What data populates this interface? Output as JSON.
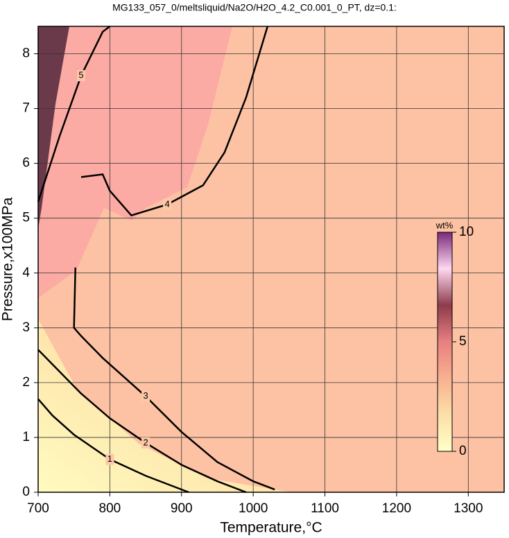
{
  "chart_data": {
    "type": "contour",
    "title": "MG133_057_0/meltsliquid/Na2O/H2O_4.2_C0.001_0_PT, dz=0.1:",
    "xlabel": "Temperature,°C",
    "ylabel": "Pressure,x100MPa",
    "xlim": [
      700,
      1350
    ],
    "xticks": [
      700,
      800,
      900,
      1000,
      1100,
      1200,
      1300
    ],
    "ylim": [
      0,
      8.5
    ],
    "yticks": [
      0,
      1,
      2,
      3,
      4,
      5,
      6,
      7,
      8
    ],
    "grid": true,
    "contours": [
      {
        "level": 1,
        "x": [
          700,
          720,
          750,
          800,
          850,
          880,
          910
        ],
        "y": [
          1.7,
          1.4,
          1.05,
          0.6,
          0.3,
          0.15,
          0.0
        ]
      },
      {
        "level": 2,
        "x": [
          700,
          730,
          760,
          800,
          850,
          900,
          950,
          990
        ],
        "y": [
          2.6,
          2.2,
          1.8,
          1.35,
          0.9,
          0.5,
          0.2,
          0.0
        ]
      },
      {
        "level": 3,
        "x": [
          752,
          750,
          760,
          790,
          850,
          900,
          950,
          1000,
          1030
        ],
        "y": [
          4.1,
          3.0,
          2.85,
          2.45,
          1.75,
          1.1,
          0.55,
          0.2,
          0.05
        ]
      },
      {
        "level": 4,
        "x": [
          760,
          790,
          800,
          830,
          880,
          930,
          960,
          990,
          1020
        ],
        "y": [
          5.75,
          5.8,
          5.5,
          5.05,
          5.25,
          5.6,
          6.2,
          7.2,
          8.5
        ]
      },
      {
        "level": 5,
        "x": [
          700,
          730,
          760,
          790,
          800
        ],
        "y": [
          5.3,
          6.5,
          7.6,
          8.4,
          8.5
        ]
      }
    ],
    "colorbar": {
      "label": "wt%",
      "lim": [
        0,
        10
      ],
      "ticks": [
        0,
        5,
        10
      ],
      "colors": [
        "#ffffc8",
        "#fce0a8",
        "#f8b090",
        "#e88080",
        "#8c3c4c",
        "#ffd8f0",
        "#7a2a7a"
      ]
    }
  }
}
